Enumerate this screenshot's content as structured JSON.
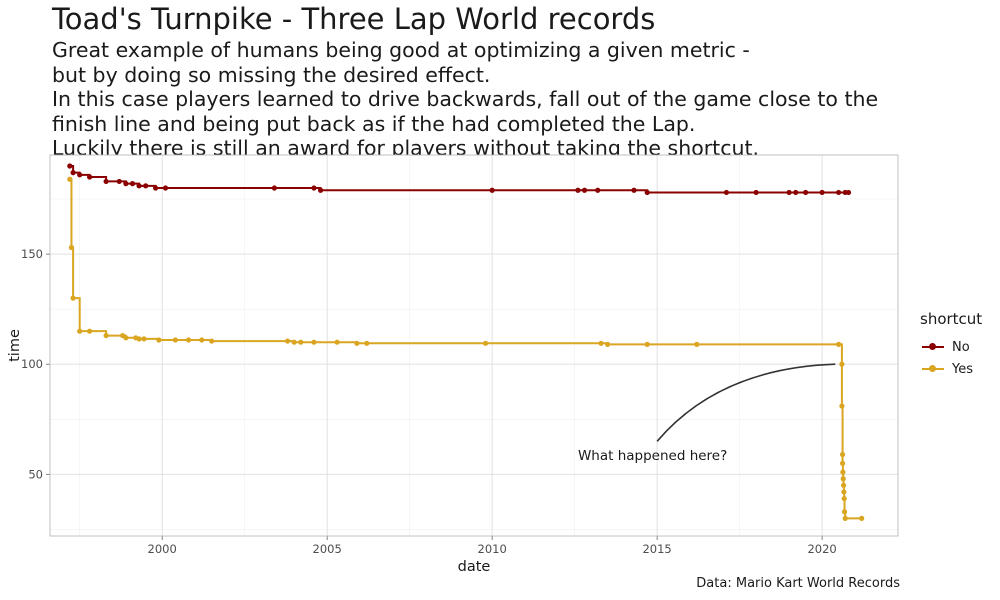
{
  "header": {
    "title": "Toad's Turnpike - Three Lap World records",
    "subtitle_lines": [
      "Great example of humans being good at optimizing a given metric -",
      "but by doing so missing the desired effect.",
      "In this case players learned to drive backwards, fall out of the game close to the",
      "finish line and being put back as if the had completed the Lap.",
      "Luckily there is still an award for players without taking the shortcut."
    ],
    "caption": "Data: Mario Kart World Records"
  },
  "chart_data": {
    "type": "line",
    "xlabel": "date",
    "ylabel": "time",
    "xlim": [
      1996.6,
      2022.3
    ],
    "ylim": [
      22,
      195
    ],
    "x_ticks": [
      2000,
      2005,
      2010,
      2015,
      2020
    ],
    "y_ticks": [
      50,
      100,
      150
    ],
    "grid": true,
    "legend": {
      "title": "shortcut",
      "position": "right"
    },
    "annotation": {
      "text": "What happened here?",
      "x": 2012.6,
      "y": 56.5,
      "arrow_from": [
        2015.0,
        65
      ],
      "arrow_to": [
        2020.4,
        100
      ]
    },
    "series": [
      {
        "name": "No",
        "color": "#8b0000",
        "x": [
          1997.2,
          1997.3,
          1997.5,
          1997.8,
          1998.3,
          1998.7,
          1998.9,
          1999.1,
          1999.3,
          1999.5,
          1999.8,
          2000.1,
          2003.4,
          2004.6,
          2004.8,
          2010.0,
          2012.6,
          2012.8,
          2013.2,
          2014.3,
          2014.7,
          2017.1,
          2018.0,
          2019.0,
          2019.2,
          2019.5,
          2020.0,
          2020.5,
          2020.7,
          2020.8
        ],
        "y": [
          190,
          187,
          186,
          185,
          183,
          183,
          182,
          182,
          181,
          181,
          180,
          180,
          180,
          180,
          179,
          179,
          179,
          179,
          179,
          179,
          178,
          178,
          178,
          178,
          178,
          178,
          178,
          178,
          178,
          178
        ]
      },
      {
        "name": "Yes",
        "color": "#daa520",
        "x": [
          1997.2,
          1997.25,
          1997.3,
          1997.5,
          1997.8,
          1998.3,
          1998.8,
          1998.9,
          1999.2,
          1999.3,
          1999.45,
          1999.9,
          2000.4,
          2000.8,
          2001.2,
          2001.5,
          2003.8,
          2004.0,
          2004.2,
          2004.6,
          2005.3,
          2005.9,
          2006.2,
          2009.8,
          2013.3,
          2013.5,
          2014.7,
          2016.2,
          2020.5,
          2020.6,
          2020.6,
          2020.62,
          2020.62,
          2020.63,
          2020.64,
          2020.65,
          2020.66,
          2020.67,
          2020.68,
          2020.7,
          2021.2
        ],
        "y": [
          184,
          153,
          130,
          115,
          115,
          113,
          113,
          112,
          112,
          111.5,
          111.5,
          111,
          111,
          111,
          111,
          110.5,
          110.5,
          110,
          110,
          110,
          110,
          109.5,
          109.5,
          109.5,
          109.5,
          109,
          109,
          109,
          109,
          100,
          81,
          59,
          55,
          51,
          48,
          45,
          42,
          39,
          33,
          30,
          30
        ]
      }
    ]
  }
}
